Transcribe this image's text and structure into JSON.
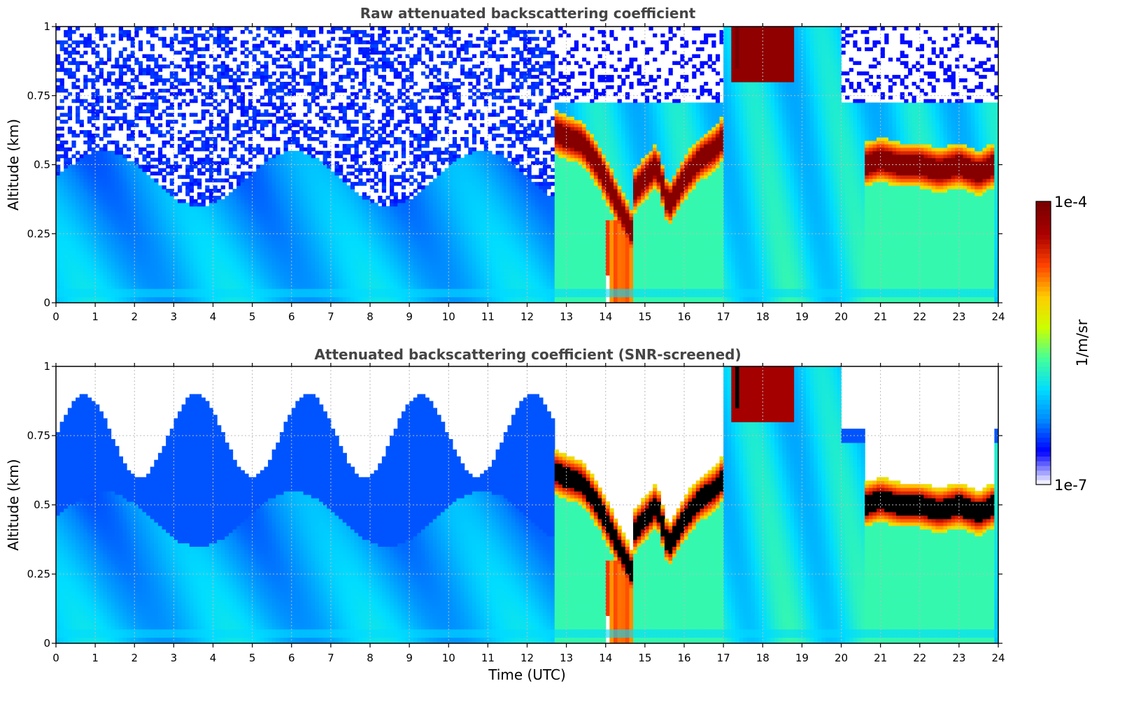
{
  "chart_data": [
    {
      "type": "heatmap",
      "title": "Raw attenuated backscattering coefficient",
      "xlabel": "",
      "ylabel": "Altitude (km)",
      "xlim": [
        0,
        24
      ],
      "ylim": [
        0,
        1
      ],
      "x_ticks": [
        "0",
        "1",
        "2",
        "3",
        "4",
        "5",
        "6",
        "7",
        "8",
        "9",
        "10",
        "11",
        "12",
        "13",
        "14",
        "15",
        "16",
        "17",
        "18",
        "19",
        "20",
        "21",
        "22",
        "23",
        "24"
      ],
      "y_ticks": [
        "0",
        "0.25",
        "0.5",
        "0.75",
        "1"
      ],
      "grid": true,
      "screened": false,
      "colorbar": {
        "label": "1/m/sr",
        "min_label": "1e-7",
        "max_label": "1e-4",
        "scale": "log"
      },
      "layers": [
        {
          "name": "cloud layer 12.7-14.7 UTC",
          "x": [
            12.7,
            13.0,
            13.4,
            13.8,
            14.1,
            14.4,
            14.7
          ],
          "y_km": [
            0.62,
            0.6,
            0.58,
            0.5,
            0.42,
            0.33,
            0.25
          ]
        },
        {
          "name": "cloud layer 14.7-17 UTC",
          "x": [
            14.7,
            15.0,
            15.3,
            15.6,
            16.0,
            16.4,
            16.8,
            17.0
          ],
          "y_km": [
            0.4,
            0.45,
            0.5,
            0.35,
            0.45,
            0.52,
            0.56,
            0.6
          ]
        },
        {
          "name": "cloud layer 20.6-23.9 UTC",
          "x": [
            20.6,
            21.0,
            21.5,
            22.0,
            22.5,
            23.0,
            23.5,
            23.9
          ],
          "y_km": [
            0.5,
            0.52,
            0.5,
            0.5,
            0.48,
            0.5,
            0.47,
            0.5
          ]
        }
      ]
    },
    {
      "type": "heatmap",
      "title": "Attenuated backscattering coefficient (SNR-screened)",
      "xlabel": "Time (UTC)",
      "ylabel": "Altitude (km)",
      "xlim": [
        0,
        24
      ],
      "ylim": [
        0,
        1
      ],
      "x_ticks": [
        "0",
        "1",
        "2",
        "3",
        "4",
        "5",
        "6",
        "7",
        "8",
        "9",
        "10",
        "11",
        "12",
        "13",
        "14",
        "15",
        "16",
        "17",
        "18",
        "19",
        "20",
        "21",
        "22",
        "23",
        "24"
      ],
      "y_ticks": [
        "0",
        "0.25",
        "0.5",
        "0.75",
        "1"
      ],
      "grid": true,
      "screened": true,
      "colorbar": {
        "label": "1/m/sr",
        "min_label": "1e-7",
        "max_label": "1e-4",
        "scale": "log"
      },
      "layers": [
        {
          "name": "cloud layer 12.7-14.7 UTC",
          "x": [
            12.7,
            13.0,
            13.4,
            13.8,
            14.1,
            14.4,
            14.7
          ],
          "y_km": [
            0.62,
            0.6,
            0.58,
            0.5,
            0.42,
            0.33,
            0.25
          ]
        },
        {
          "name": "cloud layer 14.7-17 UTC",
          "x": [
            14.7,
            15.0,
            15.3,
            15.6,
            16.0,
            16.4,
            16.8,
            17.0
          ],
          "y_km": [
            0.4,
            0.45,
            0.5,
            0.35,
            0.45,
            0.52,
            0.56,
            0.6
          ]
        },
        {
          "name": "cloud layer 20.6-23.9 UTC",
          "x": [
            20.6,
            21.0,
            21.5,
            22.0,
            22.5,
            23.0,
            23.5,
            23.9
          ],
          "y_km": [
            0.5,
            0.52,
            0.5,
            0.5,
            0.48,
            0.5,
            0.47,
            0.5
          ]
        }
      ]
    }
  ],
  "colors": {
    "colormap": [
      "#eeeeff",
      "#0000ff",
      "#0088ff",
      "#00ddff",
      "#44ff99",
      "#ccff00",
      "#ffcc00",
      "#ff4400",
      "#aa0000",
      "#7a0000"
    ],
    "screened_saturation": "#000000",
    "grid": "#bbbbbb"
  }
}
